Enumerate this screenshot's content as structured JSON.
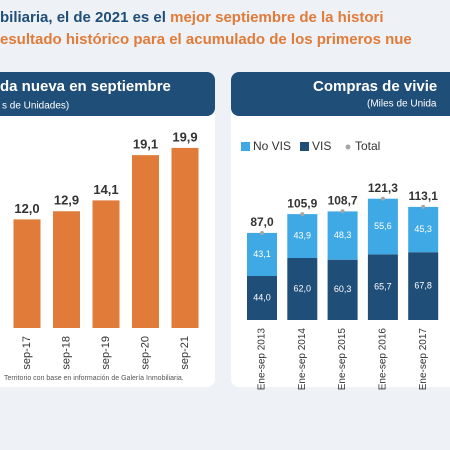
{
  "header": {
    "line1_dark": "biliaria, el de 2021 es el",
    "line1_orange": "mejor septiembre de la histori",
    "line2": "esultado histórico para el acumulado de los primeros nue"
  },
  "footer": "Territorio con base en información de Galería Inmobiliaria.",
  "chart_data": [
    {
      "type": "bar",
      "title": "da nueva en septiembre",
      "subtitle": "s de Unidades)",
      "categories": [
        "sep-17",
        "sep-18",
        "sep-19",
        "sep-20",
        "sep-21"
      ],
      "values": [
        12.0,
        12.9,
        14.1,
        19.1,
        19.9
      ],
      "value_labels": [
        "12,0",
        "12,9",
        "14,1",
        "19,1",
        "19,9"
      ],
      "color": "#e07b39"
    },
    {
      "type": "stacked-bar",
      "title": "Compras de vivie",
      "subtitle": "(Miles de Unida",
      "categories": [
        "Ene-sep 2013",
        "Ene-sep 2014",
        "Ene-sep 2015",
        "Ene-sep 2016",
        "Ene-sep 2017"
      ],
      "series": [
        {
          "name": "VIS",
          "color": "#1f4e79",
          "values": [
            44.0,
            62.0,
            60.3,
            65.7,
            67.8
          ],
          "value_labels": [
            "44,0",
            "62,0",
            "60,3",
            "65,7",
            "67,8"
          ]
        },
        {
          "name": "No VIS",
          "color": "#3fa9e6",
          "values": [
            43.1,
            43.9,
            48.3,
            55.6,
            45.3
          ],
          "value_labels": [
            "43,1",
            "43,9",
            "48,3",
            "55,6",
            "45,3"
          ]
        }
      ],
      "total": {
        "name": "Total",
        "color": "#a6a6a6",
        "values": [
          87.0,
          105.9,
          108.7,
          121.3,
          113.1
        ],
        "value_labels": [
          "87,0",
          "105,9",
          "108,7",
          "121,3",
          "113,1"
        ]
      }
    }
  ]
}
